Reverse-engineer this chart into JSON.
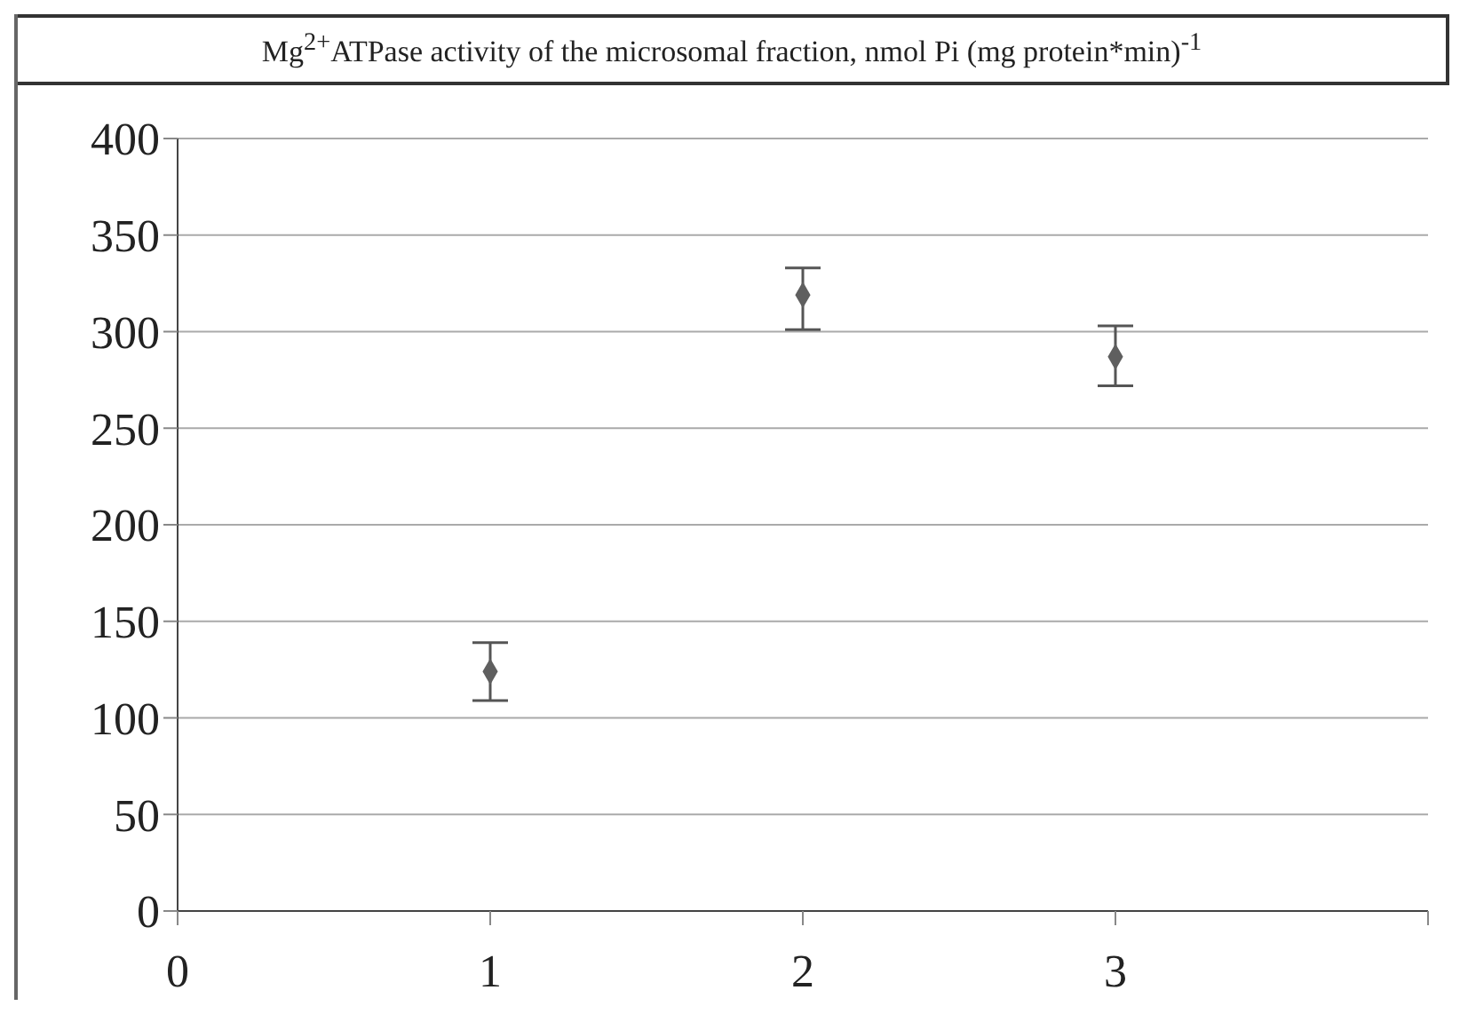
{
  "chart_data": {
    "type": "scatter",
    "title": "Mg$^{2+}$ATPase activity of the microsomal fraction, nmol Pi (mg protein*min)$^{-1}$",
    "x": [
      1,
      2,
      3
    ],
    "values": [
      124,
      319,
      287
    ],
    "errors": [
      [
        109,
        139
      ],
      [
        301,
        333
      ],
      [
        272,
        303
      ]
    ],
    "color": "#5f5f5f",
    "marker": "diamond",
    "xlim": [
      0,
      4
    ],
    "xticks": [
      0,
      1,
      2,
      3,
      {
        "value": 4,
        "label": null
      }
    ],
    "ylim": [
      0,
      400
    ],
    "yticks": [
      0,
      50,
      100,
      150,
      200,
      250,
      300,
      350,
      400
    ],
    "grid": "y",
    "legend": false
  }
}
